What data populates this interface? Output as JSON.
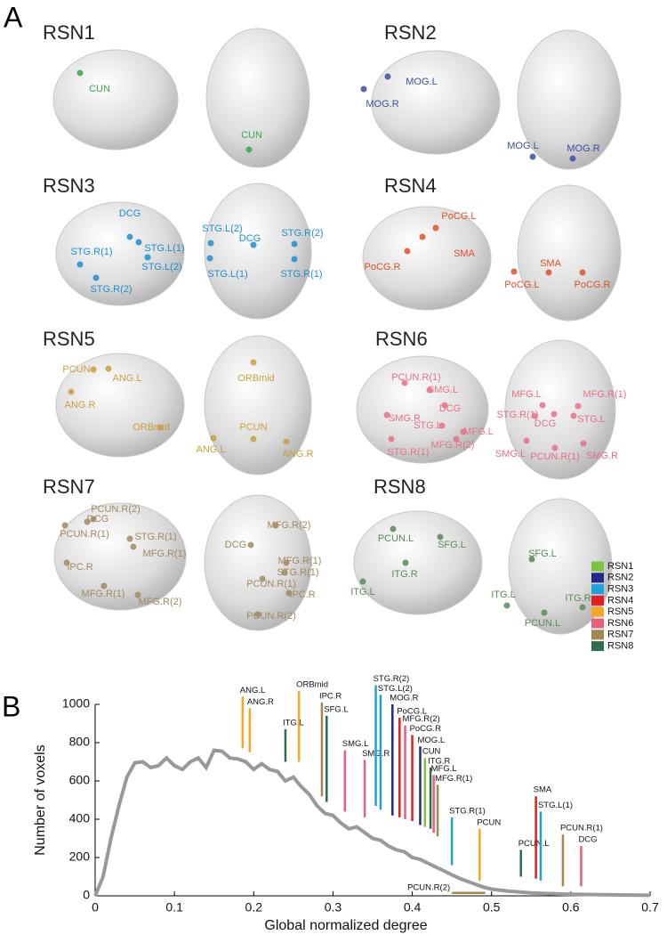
{
  "panel_a": {
    "label": "A",
    "networks": [
      {
        "title": "RSN1",
        "color": "#3aa84a",
        "views": [
          {
            "labels": [
              "CUN"
            ]
          },
          {
            "labels": [
              "CUN"
            ]
          }
        ]
      },
      {
        "title": "RSN2",
        "color": "#3c4fa0",
        "views": [
          {
            "labels": [
              "MOG.L",
              "MOG.R"
            ]
          },
          {
            "labels": [
              "MOG.L",
              "MOG.R"
            ]
          }
        ]
      },
      {
        "title": "RSN3",
        "color": "#1f8ed0",
        "views": [
          {
            "labels": [
              "DCG",
              "STG.L(1)",
              "STG.R(1)",
              "STG.L(2)",
              "STG.R(2)"
            ]
          },
          {
            "labels": [
              "STG.L(2)",
              "DCG",
              "STG.R(2)",
              "STG.L(1)",
              "STG.R(1)"
            ]
          }
        ]
      },
      {
        "title": "RSN4",
        "color": "#e0502a",
        "views": [
          {
            "labels": [
              "PoCG.L",
              "SMA",
              "PoCG.R"
            ]
          },
          {
            "labels": [
              "SMA",
              "PoCG.L",
              "PoCG.R"
            ]
          }
        ]
      },
      {
        "title": "RSN5",
        "color": "#c8a040",
        "views": [
          {
            "labels": [
              "PCUN",
              "ANG.L",
              "ANG.R",
              "ORBmid"
            ]
          },
          {
            "labels": [
              "ORBmid",
              "PCUN",
              "ANG.L",
              "ANG.R"
            ]
          }
        ]
      },
      {
        "title": "RSN6",
        "color": "#e8708a",
        "views": [
          {
            "labels": [
              "PCUN.R(1)",
              "SMG.L",
              "DCG",
              "SMG.R",
              "STG.L",
              "MFG.L",
              "MFG.R(2)",
              "STG.R(1)"
            ]
          },
          {
            "labels": [
              "MFG.L",
              "MFG.R(1)",
              "STG.R(1)",
              "DCG",
              "STG.L",
              "SMG.L",
              "PCUN.R(1)",
              "SMG.R"
            ]
          }
        ]
      },
      {
        "title": "RSN7",
        "color": "#a08a60",
        "views": [
          {
            "labels": [
              "PCUN.R(2)",
              "DCG",
              "PCUN.R(1)",
              "STG.R(1)",
              "MFG.R(1)",
              "IPC.R",
              "MFG.R(1)",
              "MFG.R(2)"
            ]
          },
          {
            "labels": [
              "MFG.R(2)",
              "DCG",
              "MFG.R(1)",
              "STG.R(1)",
              "PCUN.R(1)",
              "IPC.R",
              "PCUN.R(2)"
            ]
          }
        ]
      },
      {
        "title": "RSN8",
        "color": "#5a8a5a",
        "views": [
          {
            "labels": [
              "PCUN.L",
              "SFG.L",
              "ITG.R",
              "ITG.L"
            ]
          },
          {
            "labels": [
              "SFG.L",
              "ITG.L",
              "ITG.R",
              "PCUN.L"
            ]
          }
        ]
      }
    ]
  },
  "chart_data": {
    "type": "line",
    "panel_label": "B",
    "x_label": "Global normalized degree",
    "y_label": "Number of voxels",
    "xlim": [
      0,
      0.7
    ],
    "ylim": [
      0,
      1000
    ],
    "xticks": [
      0,
      0.1,
      0.2,
      0.3,
      0.4,
      0.5,
      0.6,
      0.7
    ],
    "yticks": [
      0,
      200,
      400,
      600,
      800,
      1000
    ],
    "line_color": "#999999",
    "x": [
      0,
      0.01,
      0.02,
      0.03,
      0.04,
      0.05,
      0.06,
      0.07,
      0.08,
      0.09,
      0.1,
      0.11,
      0.12,
      0.13,
      0.14,
      0.15,
      0.16,
      0.17,
      0.18,
      0.19,
      0.2,
      0.21,
      0.22,
      0.23,
      0.24,
      0.25,
      0.26,
      0.27,
      0.28,
      0.29,
      0.3,
      0.31,
      0.32,
      0.33,
      0.34,
      0.35,
      0.36,
      0.37,
      0.38,
      0.39,
      0.4,
      0.41,
      0.42,
      0.43,
      0.44,
      0.45,
      0.46,
      0.47,
      0.48,
      0.49,
      0.5,
      0.52,
      0.55,
      0.6,
      0.65,
      0.7
    ],
    "values": [
      0,
      100,
      300,
      470,
      620,
      695,
      700,
      670,
      680,
      720,
      680,
      660,
      700,
      720,
      670,
      760,
      755,
      720,
      715,
      700,
      660,
      690,
      660,
      650,
      600,
      620,
      570,
      530,
      470,
      430,
      420,
      380,
      350,
      360,
      330,
      300,
      290,
      260,
      240,
      230,
      200,
      190,
      170,
      150,
      130,
      110,
      90,
      75,
      60,
      45,
      35,
      25,
      15,
      8,
      5,
      3
    ],
    "legend": "upper right",
    "series": [
      {
        "name": "RSN1",
        "color": "#7dc242"
      },
      {
        "name": "RSN2",
        "color": "#1f2a8a"
      },
      {
        "name": "RSN3",
        "color": "#1ea0d8"
      },
      {
        "name": "RSN4",
        "color": "#e02020"
      },
      {
        "name": "RSN5",
        "color": "#f5a623"
      },
      {
        "name": "RSN6",
        "color": "#e8607a"
      },
      {
        "name": "RSN7",
        "color": "#a38850"
      },
      {
        "name": "RSN8",
        "color": "#2f6b4d"
      }
    ],
    "nodes": [
      {
        "name": "ANG.L",
        "x": 0.186,
        "bottom": 770,
        "top": 1040,
        "network": "RSN5"
      },
      {
        "name": "ANG.R",
        "x": 0.195,
        "bottom": 750,
        "top": 980,
        "network": "RSN5"
      },
      {
        "name": "ITG.L",
        "x": 0.24,
        "bottom": 700,
        "top": 870,
        "network": "RSN8"
      },
      {
        "name": "ORBmid",
        "x": 0.257,
        "bottom": 700,
        "top": 1070,
        "network": "RSN5"
      },
      {
        "name": "IPC.R",
        "x": 0.286,
        "bottom": 520,
        "top": 1010,
        "network": "RSN7"
      },
      {
        "name": "SFG.L",
        "x": 0.292,
        "bottom": 490,
        "top": 940,
        "network": "RSN8"
      },
      {
        "name": "SMG.L",
        "x": 0.315,
        "bottom": 440,
        "top": 760,
        "network": "RSN6"
      },
      {
        "name": "SMG.R",
        "x": 0.34,
        "bottom": 410,
        "top": 710,
        "network": "RSN6"
      },
      {
        "name": "STG.R(2)",
        "x": 0.354,
        "bottom": 470,
        "top": 1100,
        "network": "RSN3"
      },
      {
        "name": "STG.L(2)",
        "x": 0.36,
        "bottom": 450,
        "top": 1050,
        "network": "RSN3"
      },
      {
        "name": "MOG.R",
        "x": 0.375,
        "bottom": 420,
        "top": 1000,
        "network": "RSN2"
      },
      {
        "name": "PoCG.L",
        "x": 0.384,
        "bottom": 410,
        "top": 930,
        "network": "RSN4"
      },
      {
        "name": "MFG.R(2)",
        "x": 0.391,
        "bottom": 400,
        "top": 890,
        "network": "RSN6"
      },
      {
        "name": "PoCG.R",
        "x": 0.4,
        "bottom": 390,
        "top": 840,
        "network": "RSN4"
      },
      {
        "name": "MOG.L",
        "x": 0.41,
        "bottom": 370,
        "top": 780,
        "network": "RSN2"
      },
      {
        "name": "CUN",
        "x": 0.416,
        "bottom": 360,
        "top": 720,
        "network": "RSN1"
      },
      {
        "name": "ITG.R",
        "x": 0.423,
        "bottom": 350,
        "top": 670,
        "network": "RSN8"
      },
      {
        "name": "MFG.L",
        "x": 0.427,
        "bottom": 330,
        "top": 630,
        "network": "RSN6"
      },
      {
        "name": "MFG.R(1)",
        "x": 0.432,
        "bottom": 310,
        "top": 580,
        "network": "RSN7"
      },
      {
        "name": "STG.R(1)",
        "x": 0.45,
        "bottom": 160,
        "top": 410,
        "network": "RSN3"
      },
      {
        "name": "PCUN",
        "x": 0.485,
        "bottom": 80,
        "top": 350,
        "network": "RSN5"
      },
      {
        "name": "PCUN.L",
        "x": 0.537,
        "bottom": 100,
        "top": 240,
        "network": "RSN8"
      },
      {
        "name": "SMA",
        "x": 0.556,
        "bottom": 90,
        "top": 520,
        "network": "RSN4"
      },
      {
        "name": "STG.L(1)",
        "x": 0.562,
        "bottom": 80,
        "top": 440,
        "network": "RSN3"
      },
      {
        "name": "PCUN.R(1)",
        "x": 0.59,
        "bottom": 50,
        "top": 320,
        "network": "RSN7"
      },
      {
        "name": "DCG",
        "x": 0.613,
        "bottom": 50,
        "top": 260,
        "network": "RSN6"
      }
    ],
    "span_node": {
      "name": "PCUN.R(2)",
      "x": [
        0.45,
        0.492
      ],
      "value": 15,
      "network": "RSN7"
    }
  }
}
